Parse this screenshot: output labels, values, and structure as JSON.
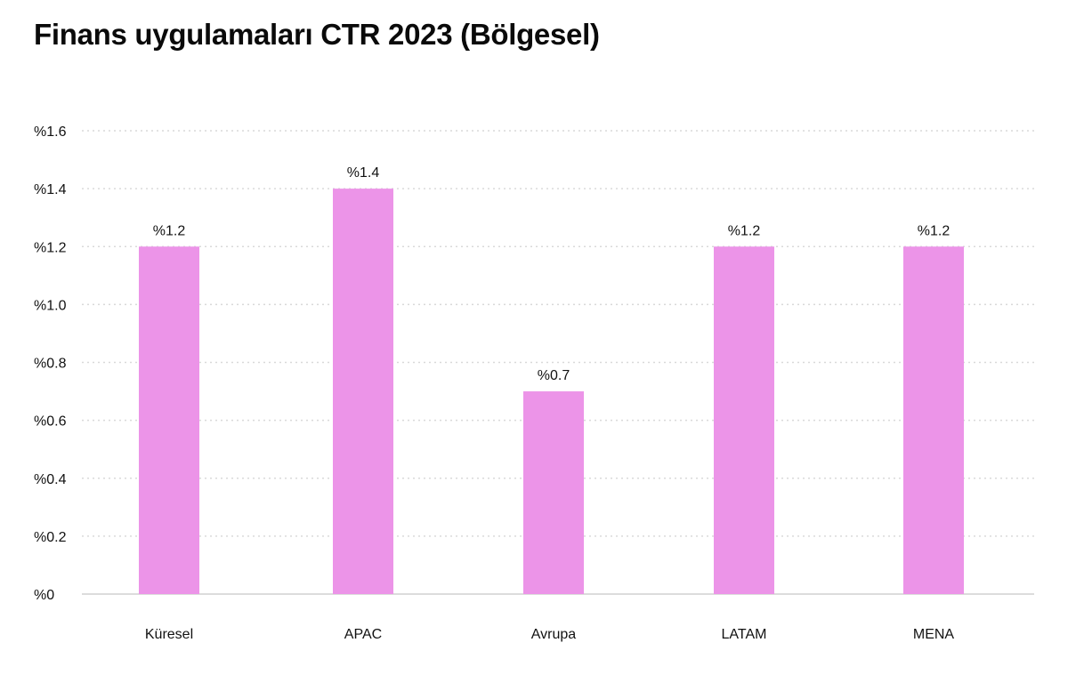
{
  "chart_data": {
    "type": "bar",
    "title": "Finans uygulamaları CTR 2023 (Bölgesel)",
    "xlabel": "",
    "ylabel": "",
    "categories": [
      "Küresel",
      "APAC",
      "Avrupa",
      "LATAM",
      "MENA"
    ],
    "values": [
      1.2,
      1.4,
      0.7,
      1.2,
      1.2
    ],
    "value_labels": [
      "%1.2",
      "%1.4",
      "%0.7",
      "%1.2",
      "%1.2"
    ],
    "ylim": [
      0,
      1.6
    ],
    "yticks": [
      0,
      0.2,
      0.4,
      0.6,
      0.8,
      1.0,
      1.2,
      1.4,
      1.6
    ],
    "ytick_labels": [
      "%0",
      "%0.2",
      "%0.4",
      "%0.6",
      "%0.8",
      "%1.0",
      "%1.2",
      "%1.4",
      "%1.6"
    ],
    "grid": true,
    "legend": "none",
    "bar_color": "#ec94e8",
    "grid_color": "#d9d9d9",
    "axis_color": "#d0d0d0"
  }
}
